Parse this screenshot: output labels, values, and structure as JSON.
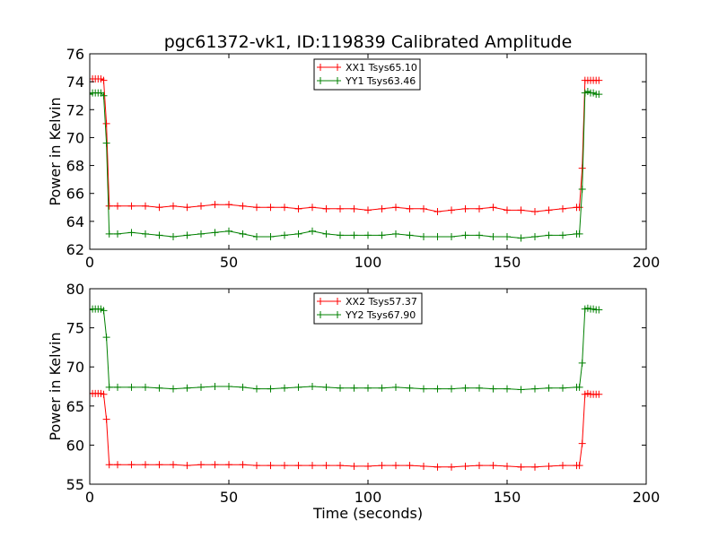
{
  "figure": {
    "title": "pgc61372-vk1, ID:119839 Calibrated Amplitude"
  },
  "chart_data": [
    {
      "type": "line",
      "title": "pgc61372-vk1, ID:119839 Calibrated Amplitude",
      "xlabel": "",
      "ylabel": "Power in Kelvin",
      "xlim": [
        0,
        200
      ],
      "ylim": [
        62,
        76
      ],
      "xticks": [
        0,
        50,
        100,
        150,
        200
      ],
      "yticks": [
        62,
        64,
        66,
        68,
        70,
        72,
        74,
        76
      ],
      "grid": false,
      "legend_position": "top-center",
      "series": [
        {
          "name": "XX1 Tsys65.10",
          "color": "#ff0000",
          "marker": "plus",
          "x": [
            0,
            1,
            2,
            3,
            4,
            5,
            6,
            7,
            10,
            15,
            20,
            25,
            30,
            35,
            40,
            45,
            50,
            55,
            60,
            65,
            70,
            75,
            80,
            85,
            90,
            95,
            100,
            105,
            110,
            115,
            120,
            125,
            130,
            135,
            140,
            145,
            150,
            155,
            160,
            165,
            170,
            175,
            176,
            177,
            178,
            179,
            180,
            181,
            182,
            183
          ],
          "y": [
            74.2,
            74.2,
            74.2,
            74.2,
            74.2,
            74.1,
            71.0,
            65.1,
            65.1,
            65.1,
            65.1,
            65.0,
            65.1,
            65.0,
            65.1,
            65.2,
            65.2,
            65.1,
            65.0,
            65.0,
            65.0,
            64.9,
            65.0,
            64.9,
            64.9,
            64.9,
            64.8,
            64.9,
            65.0,
            64.9,
            64.9,
            64.7,
            64.8,
            64.9,
            64.9,
            65.0,
            64.8,
            64.8,
            64.7,
            64.8,
            64.9,
            65.0,
            65.0,
            67.8,
            74.1,
            74.1,
            74.1,
            74.1,
            74.1,
            74.1
          ]
        },
        {
          "name": "YY1 Tsys63.46",
          "color": "#008000",
          "marker": "plus",
          "x": [
            0,
            1,
            2,
            3,
            4,
            5,
            6,
            7,
            10,
            15,
            20,
            25,
            30,
            35,
            40,
            45,
            50,
            55,
            60,
            65,
            70,
            75,
            80,
            85,
            90,
            95,
            100,
            105,
            110,
            115,
            120,
            125,
            130,
            135,
            140,
            145,
            150,
            155,
            160,
            165,
            170,
            175,
            176,
            177,
            178,
            179,
            180,
            181,
            182,
            183
          ],
          "y": [
            73.1,
            73.2,
            73.2,
            73.2,
            73.2,
            73.0,
            69.6,
            63.1,
            63.1,
            63.2,
            63.1,
            63.0,
            62.9,
            63.0,
            63.1,
            63.2,
            63.3,
            63.1,
            62.9,
            62.9,
            63.0,
            63.1,
            63.3,
            63.1,
            63.0,
            63.0,
            63.0,
            63.0,
            63.1,
            63.0,
            62.9,
            62.9,
            62.9,
            63.0,
            63.0,
            62.9,
            62.9,
            62.8,
            62.9,
            63.0,
            63.0,
            63.1,
            63.1,
            66.3,
            73.2,
            73.3,
            73.2,
            73.2,
            73.1,
            73.1
          ]
        }
      ]
    },
    {
      "type": "line",
      "title": "",
      "xlabel": "Time (seconds)",
      "ylabel": "Power in Kelvin",
      "xlim": [
        0,
        200
      ],
      "ylim": [
        55,
        80
      ],
      "xticks": [
        0,
        50,
        100,
        150,
        200
      ],
      "yticks": [
        55,
        60,
        65,
        70,
        75,
        80
      ],
      "grid": false,
      "legend_position": "top-center",
      "series": [
        {
          "name": "XX2 Tsys57.37",
          "color": "#ff0000",
          "marker": "plus",
          "x": [
            0,
            1,
            2,
            3,
            4,
            5,
            6,
            7,
            10,
            15,
            20,
            25,
            30,
            35,
            40,
            45,
            50,
            55,
            60,
            65,
            70,
            75,
            80,
            85,
            90,
            95,
            100,
            105,
            110,
            115,
            120,
            125,
            130,
            135,
            140,
            145,
            150,
            155,
            160,
            165,
            170,
            175,
            176,
            177,
            178,
            179,
            180,
            181,
            182,
            183
          ],
          "y": [
            66.6,
            66.6,
            66.6,
            66.6,
            66.6,
            66.5,
            63.3,
            57.5,
            57.5,
            57.5,
            57.5,
            57.5,
            57.5,
            57.4,
            57.5,
            57.5,
            57.5,
            57.5,
            57.4,
            57.4,
            57.4,
            57.4,
            57.4,
            57.4,
            57.4,
            57.3,
            57.3,
            57.4,
            57.4,
            57.4,
            57.3,
            57.2,
            57.2,
            57.3,
            57.4,
            57.4,
            57.3,
            57.2,
            57.2,
            57.3,
            57.4,
            57.4,
            57.4,
            60.2,
            66.5,
            66.6,
            66.5,
            66.5,
            66.5,
            66.5
          ]
        },
        {
          "name": "YY2 Tsys67.90",
          "color": "#008000",
          "marker": "plus",
          "x": [
            0,
            1,
            2,
            3,
            4,
            5,
            6,
            7,
            10,
            15,
            20,
            25,
            30,
            35,
            40,
            45,
            50,
            55,
            60,
            65,
            70,
            75,
            80,
            85,
            90,
            95,
            100,
            105,
            110,
            115,
            120,
            125,
            130,
            135,
            140,
            145,
            150,
            155,
            160,
            165,
            170,
            175,
            176,
            177,
            178,
            179,
            180,
            181,
            182,
            183
          ],
          "y": [
            77.3,
            77.4,
            77.4,
            77.4,
            77.4,
            77.2,
            73.8,
            67.4,
            67.4,
            67.4,
            67.4,
            67.3,
            67.2,
            67.3,
            67.4,
            67.5,
            67.5,
            67.4,
            67.2,
            67.2,
            67.3,
            67.4,
            67.5,
            67.4,
            67.3,
            67.3,
            67.3,
            67.3,
            67.4,
            67.3,
            67.2,
            67.2,
            67.2,
            67.3,
            67.3,
            67.2,
            67.2,
            67.1,
            67.2,
            67.3,
            67.3,
            67.4,
            67.4,
            70.5,
            77.4,
            77.5,
            77.4,
            77.4,
            77.3,
            77.3
          ]
        }
      ]
    }
  ]
}
